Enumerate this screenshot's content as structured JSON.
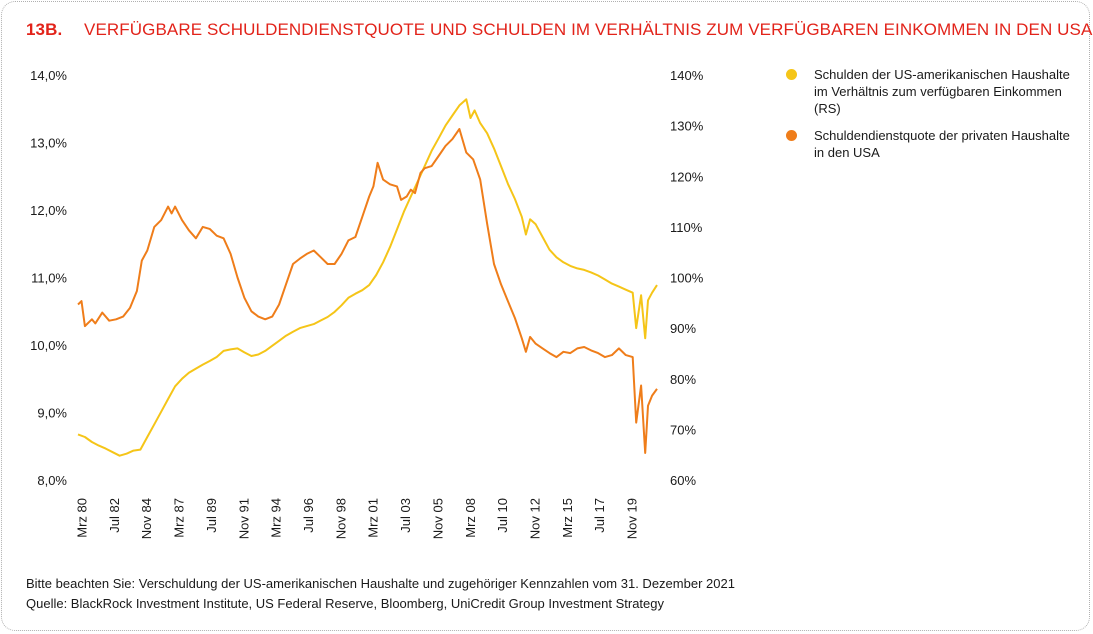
{
  "header": {
    "number": "13B.",
    "title": "VERFÜGBARE SCHULDENDIENSTQUOTE UND SCHULDEN IM VERHÄLTNIS ZUM VERFÜGBAREN EINKOMMEN IN DEN USA"
  },
  "legend": {
    "items": [
      {
        "label": "Schulden der US-amerikanischen Haushalte im Verhältnis zum verfügbaren Einkommen (RS)",
        "color": "#f5c518"
      },
      {
        "label": "Schuldendienstquote der privaten Haushalte in den USA",
        "color": "#ef7d1a"
      }
    ]
  },
  "footer": {
    "note": "Bitte beachten Sie: Verschuldung der US-amerikanischen Haushalte und zugehöriger Kennzahlen vom 31. Dezember 2021",
    "source": "Quelle: BlackRock Investment Institute, US Federal Reserve, Bloomberg, UniCredit Group Investment Strategy"
  },
  "chart_data": {
    "type": "line",
    "x_ticks": [
      "Mrz 80",
      "Jul 82",
      "Nov 84",
      "Mrz 87",
      "Jul 89",
      "Nov 91",
      "Mrz 94",
      "Jul 96",
      "Nov 98",
      "Mrz 01",
      "Jul 03",
      "Nov 05",
      "Mrz 08",
      "Jul 10",
      "Nov 12",
      "Mrz 15",
      "Jul 17",
      "Nov 19"
    ],
    "y_left": {
      "ticks": [
        "8,0%",
        "9,0%",
        "10,0%",
        "11,0%",
        "12,0%",
        "13,0%",
        "14,0%"
      ],
      "range": [
        8.0,
        14.0
      ]
    },
    "y_right": {
      "ticks": [
        "60%",
        "70%",
        "80%",
        "90%",
        "100%",
        "110%",
        "120%",
        "130%",
        "140%"
      ],
      "range": [
        60,
        140
      ]
    },
    "x_range": [
      1980.0,
      2021.75
    ],
    "grid": false,
    "legend_position": "right",
    "series": [
      {
        "name": "Schulden der US-amerikanischen Haushalte im Verhältnis zum verfügbaren Einkommen (RS)",
        "axis": "right",
        "color": "#f5c518",
        "points": [
          [
            1980.0,
            69.0
          ],
          [
            1980.5,
            68.5
          ],
          [
            1981.0,
            67.5
          ],
          [
            1981.5,
            66.8
          ],
          [
            1982.0,
            66.2
          ],
          [
            1982.5,
            65.5
          ],
          [
            1983.0,
            64.8
          ],
          [
            1983.5,
            65.2
          ],
          [
            1984.0,
            65.8
          ],
          [
            1984.5,
            66.0
          ],
          [
            1985.0,
            68.5
          ],
          [
            1985.5,
            71.0
          ],
          [
            1986.0,
            73.5
          ],
          [
            1986.5,
            76.0
          ],
          [
            1987.0,
            78.5
          ],
          [
            1987.5,
            80.0
          ],
          [
            1988.0,
            81.2
          ],
          [
            1988.5,
            82.0
          ],
          [
            1989.0,
            82.8
          ],
          [
            1989.5,
            83.5
          ],
          [
            1990.0,
            84.3
          ],
          [
            1990.5,
            85.5
          ],
          [
            1991.0,
            85.8
          ],
          [
            1991.5,
            86.0
          ],
          [
            1992.0,
            85.2
          ],
          [
            1992.5,
            84.5
          ],
          [
            1993.0,
            84.8
          ],
          [
            1993.5,
            85.5
          ],
          [
            1994.0,
            86.5
          ],
          [
            1994.5,
            87.5
          ],
          [
            1995.0,
            88.5
          ],
          [
            1995.5,
            89.3
          ],
          [
            1996.0,
            90.0
          ],
          [
            1996.5,
            90.4
          ],
          [
            1997.0,
            90.8
          ],
          [
            1997.5,
            91.5
          ],
          [
            1998.0,
            92.2
          ],
          [
            1998.5,
            93.2
          ],
          [
            1999.0,
            94.5
          ],
          [
            1999.5,
            96.0
          ],
          [
            2000.0,
            96.8
          ],
          [
            2000.5,
            97.5
          ],
          [
            2001.0,
            98.5
          ],
          [
            2001.5,
            100.5
          ],
          [
            2002.0,
            103.0
          ],
          [
            2002.5,
            106.0
          ],
          [
            2003.0,
            109.5
          ],
          [
            2003.5,
            113.0
          ],
          [
            2004.0,
            116.0
          ],
          [
            2004.5,
            119.0
          ],
          [
            2005.0,
            122.0
          ],
          [
            2005.5,
            125.0
          ],
          [
            2006.0,
            127.5
          ],
          [
            2006.5,
            130.0
          ],
          [
            2007.0,
            132.0
          ],
          [
            2007.5,
            134.0
          ],
          [
            2008.0,
            135.2
          ],
          [
            2008.3,
            131.5
          ],
          [
            2008.6,
            133.0
          ],
          [
            2009.0,
            130.5
          ],
          [
            2009.5,
            128.5
          ],
          [
            2010.0,
            125.5
          ],
          [
            2010.5,
            122.0
          ],
          [
            2011.0,
            118.5
          ],
          [
            2011.5,
            115.5
          ],
          [
            2012.0,
            112.0
          ],
          [
            2012.3,
            108.5
          ],
          [
            2012.6,
            111.5
          ],
          [
            2013.0,
            110.5
          ],
          [
            2013.5,
            108.0
          ],
          [
            2014.0,
            105.5
          ],
          [
            2014.5,
            104.0
          ],
          [
            2015.0,
            103.0
          ],
          [
            2015.5,
            102.3
          ],
          [
            2016.0,
            101.8
          ],
          [
            2016.5,
            101.5
          ],
          [
            2017.0,
            101.0
          ],
          [
            2017.5,
            100.4
          ],
          [
            2018.0,
            99.6
          ],
          [
            2018.5,
            98.8
          ],
          [
            2019.0,
            98.2
          ],
          [
            2019.5,
            97.6
          ],
          [
            2020.0,
            97.0
          ],
          [
            2020.25,
            90.0
          ],
          [
            2020.6,
            96.5
          ],
          [
            2020.9,
            88.0
          ],
          [
            2021.1,
            95.5
          ],
          [
            2021.4,
            97.0
          ],
          [
            2021.75,
            98.5
          ]
        ]
      },
      {
        "name": "Schuldendienstquote der privaten Haushalte in den USA",
        "axis": "left",
        "color": "#ef7d1a",
        "points": [
          [
            1980.0,
            10.6
          ],
          [
            1980.25,
            10.65
          ],
          [
            1980.5,
            10.28
          ],
          [
            1981.0,
            10.38
          ],
          [
            1981.25,
            10.32
          ],
          [
            1981.75,
            10.48
          ],
          [
            1982.25,
            10.36
          ],
          [
            1982.75,
            10.38
          ],
          [
            1983.25,
            10.42
          ],
          [
            1983.75,
            10.55
          ],
          [
            1984.25,
            10.8
          ],
          [
            1984.6,
            11.25
          ],
          [
            1985.0,
            11.4
          ],
          [
            1985.5,
            11.75
          ],
          [
            1986.0,
            11.85
          ],
          [
            1986.5,
            12.05
          ],
          [
            1986.75,
            11.95
          ],
          [
            1987.0,
            12.05
          ],
          [
            1987.5,
            11.85
          ],
          [
            1988.0,
            11.7
          ],
          [
            1988.5,
            11.58
          ],
          [
            1989.0,
            11.75
          ],
          [
            1989.5,
            11.72
          ],
          [
            1990.0,
            11.62
          ],
          [
            1990.5,
            11.58
          ],
          [
            1991.0,
            11.35
          ],
          [
            1991.5,
            11.0
          ],
          [
            1992.0,
            10.7
          ],
          [
            1992.5,
            10.5
          ],
          [
            1993.0,
            10.42
          ],
          [
            1993.5,
            10.38
          ],
          [
            1994.0,
            10.42
          ],
          [
            1994.5,
            10.6
          ],
          [
            1995.0,
            10.9
          ],
          [
            1995.5,
            11.2
          ],
          [
            1996.0,
            11.28
          ],
          [
            1996.5,
            11.35
          ],
          [
            1997.0,
            11.4
          ],
          [
            1997.5,
            11.3
          ],
          [
            1998.0,
            11.2
          ],
          [
            1998.5,
            11.2
          ],
          [
            1999.0,
            11.35
          ],
          [
            1999.5,
            11.55
          ],
          [
            2000.0,
            11.6
          ],
          [
            2000.5,
            11.9
          ],
          [
            2001.0,
            12.2
          ],
          [
            2001.3,
            12.35
          ],
          [
            2001.6,
            12.7
          ],
          [
            2002.0,
            12.45
          ],
          [
            2002.5,
            12.38
          ],
          [
            2003.0,
            12.35
          ],
          [
            2003.3,
            12.15
          ],
          [
            2003.7,
            12.2
          ],
          [
            2004.0,
            12.3
          ],
          [
            2004.3,
            12.25
          ],
          [
            2004.7,
            12.55
          ],
          [
            2005.0,
            12.62
          ],
          [
            2005.5,
            12.65
          ],
          [
            2006.0,
            12.8
          ],
          [
            2006.5,
            12.95
          ],
          [
            2007.0,
            13.05
          ],
          [
            2007.5,
            13.2
          ],
          [
            2008.0,
            12.85
          ],
          [
            2008.5,
            12.75
          ],
          [
            2009.0,
            12.45
          ],
          [
            2009.5,
            11.8
          ],
          [
            2010.0,
            11.2
          ],
          [
            2010.5,
            10.9
          ],
          [
            2011.0,
            10.65
          ],
          [
            2011.5,
            10.4
          ],
          [
            2012.0,
            10.1
          ],
          [
            2012.3,
            9.9
          ],
          [
            2012.6,
            10.12
          ],
          [
            2013.0,
            10.02
          ],
          [
            2013.5,
            9.95
          ],
          [
            2014.0,
            9.88
          ],
          [
            2014.5,
            9.82
          ],
          [
            2015.0,
            9.9
          ],
          [
            2015.5,
            9.88
          ],
          [
            2016.0,
            9.95
          ],
          [
            2016.5,
            9.97
          ],
          [
            2017.0,
            9.92
          ],
          [
            2017.5,
            9.88
          ],
          [
            2018.0,
            9.82
          ],
          [
            2018.5,
            9.85
          ],
          [
            2019.0,
            9.95
          ],
          [
            2019.5,
            9.85
          ],
          [
            2020.0,
            9.82
          ],
          [
            2020.25,
            8.85
          ],
          [
            2020.6,
            9.4
          ],
          [
            2020.9,
            8.4
          ],
          [
            2021.1,
            9.1
          ],
          [
            2021.4,
            9.25
          ],
          [
            2021.75,
            9.35
          ]
        ]
      }
    ]
  }
}
